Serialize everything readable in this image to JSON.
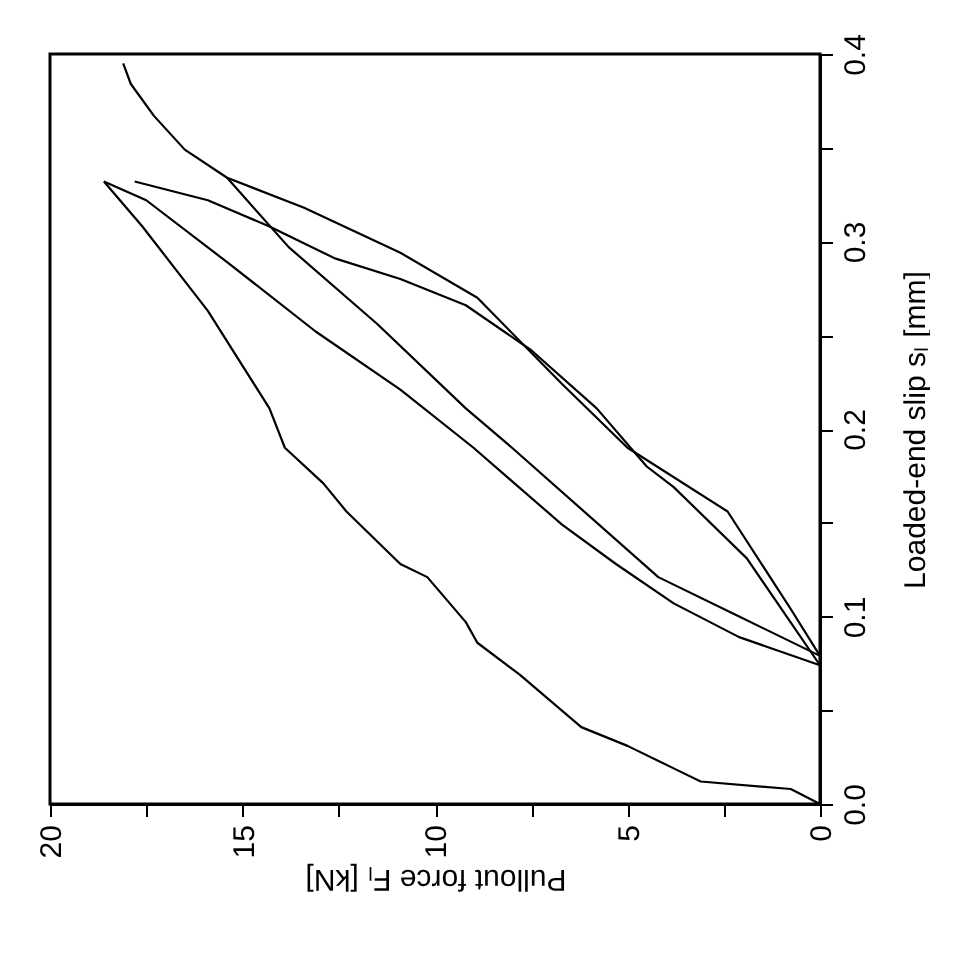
{
  "chart_data": {
    "type": "line",
    "xlabel": "Pullout force Fₗ [kN]",
    "ylabel": "Loaded-end slip sₗ [mm]",
    "xlim": [
      20,
      0
    ],
    "ylim": [
      0,
      0.4
    ],
    "xticks": [
      0,
      {
        "value": 2.5,
        "label": null
      },
      5,
      {
        "value": 7.5,
        "label": null
      },
      10,
      {
        "value": 12.5,
        "label": null
      },
      15,
      {
        "value": 17.5,
        "label": null
      },
      20
    ],
    "yticks": [
      {
        "value": 0,
        "label": "0.0"
      },
      {
        "value": 0.05,
        "label": null
      },
      0.1,
      {
        "value": 0.15,
        "label": null
      },
      0.2,
      {
        "value": 0.25,
        "label": null
      },
      0.3,
      {
        "value": 0.35,
        "label": null
      },
      0.4
    ],
    "grid": false,
    "legend": false,
    "marker": "none",
    "line_style": "solid",
    "series": [
      {
        "color": "#000000",
        "x": [
          0,
          0.76,
          3.1,
          3.8,
          5.0,
          6.2,
          7.8,
          8.9,
          9.2,
          10.2,
          10.9,
          12.3,
          12.9,
          13.9,
          14.3,
          15.9,
          17.6,
          18.6
        ],
        "values": [
          0,
          0.008,
          0.012,
          0.019,
          0.031,
          0.041,
          0.069,
          0.086,
          0.097,
          0.121,
          0.128,
          0.156,
          0.171,
          0.19,
          0.211,
          0.263,
          0.308,
          0.332
        ]
      },
      {
        "color": "#000000",
        "x": [
          18.6,
          17.5,
          15.4,
          13.1,
          10.9,
          9.0,
          6.7,
          5.3,
          3.8,
          2.1,
          0
        ],
        "values": [
          0.332,
          0.322,
          0.289,
          0.252,
          0.221,
          0.19,
          0.149,
          0.128,
          0.107,
          0.089,
          0.074
        ]
      },
      {
        "color": "#000000",
        "x": [
          0,
          1.9,
          3.8,
          4.5,
          5.8,
          7.5,
          9.2,
          10.9,
          12.6,
          14.3,
          15.9,
          17.8
        ],
        "values": [
          0.074,
          0.131,
          0.169,
          0.18,
          0.211,
          0.242,
          0.266,
          0.28,
          0.291,
          0.308,
          0.322,
          0.332
        ]
      },
      {
        "color": "#000000",
        "x": [
          15.4,
          13.8,
          11.5,
          9.2,
          8.0,
          4.2,
          2.1,
          0
        ],
        "values": [
          0.334,
          0.297,
          0.256,
          0.211,
          0.19,
          0.121,
          0.1,
          0.079
        ]
      },
      {
        "color": "#000000",
        "x": [
          0,
          0.76,
          2.4,
          5.0,
          6.7,
          8.9,
          10.9,
          13.4,
          15.4,
          16.5,
          17.3,
          17.9,
          18.1
        ],
        "values": [
          0.079,
          0.104,
          0.156,
          0.19,
          0.224,
          0.27,
          0.294,
          0.318,
          0.334,
          0.349,
          0.367,
          0.384,
          0.395
        ]
      }
    ]
  }
}
